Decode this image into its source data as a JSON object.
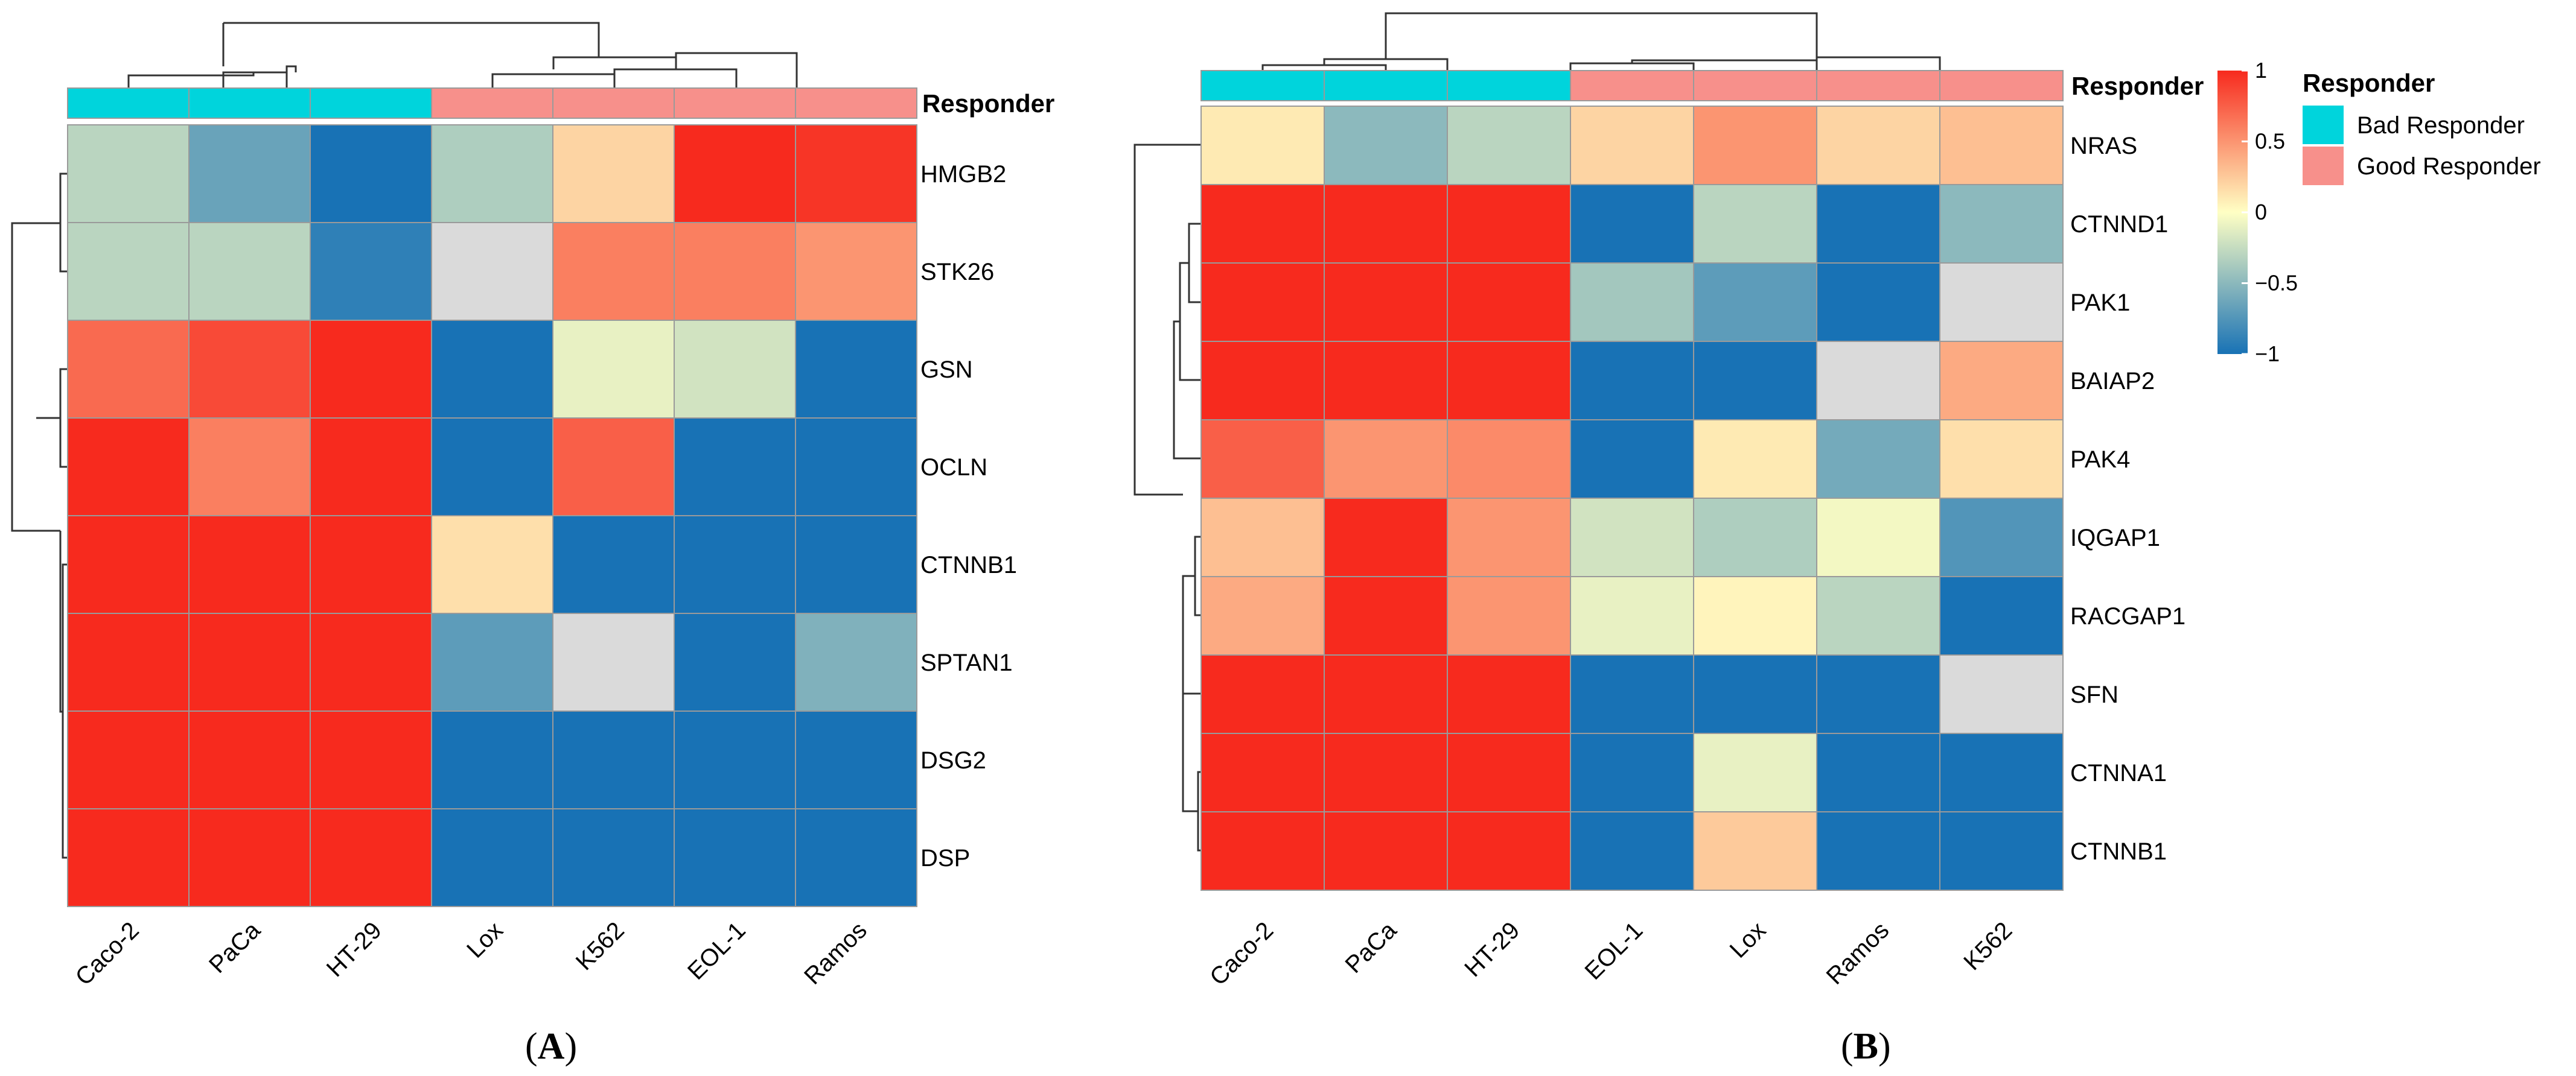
{
  "colors": {
    "bad_responder": "#00D4DC",
    "good_responder": "#F7908B",
    "scale": [
      "#1872B5",
      "#FFFFC4",
      "#F72A1E"
    ],
    "na": "#DADADA",
    "grid": "#9A9A9A"
  },
  "chart_data": [
    {
      "type": "heatmap",
      "panel_label": "A",
      "columns": [
        "Caco-2",
        "PaCa",
        "HT-29",
        "Lox",
        "K562",
        "EOL-1",
        "Ramos"
      ],
      "column_groups": [
        "Bad Responder",
        "Bad Responder",
        "Bad Responder",
        "Good Responder",
        "Good Responder",
        "Good Responder",
        "Good Responder"
      ],
      "annotation_label": "Responder",
      "rows": [
        "HMGB2",
        "STK26",
        "GSN",
        "OCLN",
        "CTNNB1",
        "SPTAN1",
        "DSG2",
        "DSP"
      ],
      "values": [
        [
          -0.3,
          -0.65,
          -1,
          -0.35,
          0.2,
          1,
          0.95
        ],
        [
          -0.3,
          -0.3,
          -0.9,
          null,
          0.6,
          0.6,
          0.5
        ],
        [
          0.7,
          0.85,
          1,
          -1,
          -0.1,
          -0.2,
          -1
        ],
        [
          1,
          0.6,
          1,
          -1,
          0.75,
          -1,
          -1
        ],
        [
          1,
          1,
          1,
          0.15,
          -1,
          -1,
          -1
        ],
        [
          1,
          1,
          1,
          -0.7,
          null,
          -1,
          -0.55
        ],
        [
          1,
          1,
          1,
          -1,
          -1,
          -1,
          -1
        ],
        [
          1,
          1,
          1,
          -1,
          -1,
          -1,
          -1
        ]
      ]
    },
    {
      "type": "heatmap",
      "panel_label": "B",
      "columns": [
        "Caco-2",
        "PaCa",
        "HT-29",
        "EOL-1",
        "Lox",
        "Ramos",
        "K562"
      ],
      "column_groups": [
        "Bad Responder",
        "Bad Responder",
        "Bad Responder",
        "Good Responder",
        "Good Responder",
        "Good Responder",
        "Good Responder"
      ],
      "annotation_label": "Responder",
      "rows": [
        "NRAS",
        "CTNND1",
        "PAK1",
        "BAIAP2",
        "PAK4",
        "IQGAP1",
        "RACGAP1",
        "SFN",
        "CTNNA1",
        "CTNNB1"
      ],
      "values": [
        [
          0.1,
          -0.5,
          -0.3,
          0.2,
          0.5,
          0.2,
          0.3
        ],
        [
          1,
          1,
          1,
          -1,
          -0.3,
          -1,
          -0.5
        ],
        [
          1,
          1,
          1,
          -0.4,
          -0.7,
          -1,
          null
        ],
        [
          1,
          1,
          1,
          -1,
          -1,
          null,
          0.4
        ],
        [
          0.75,
          0.5,
          0.55,
          -1,
          0.1,
          -0.6,
          0.15
        ],
        [
          0.3,
          1,
          0.5,
          -0.2,
          -0.35,
          -0.05,
          -0.75
        ],
        [
          0.4,
          1,
          0.5,
          -0.1,
          0.05,
          -0.3,
          -1
        ],
        [
          1,
          1,
          1,
          -1,
          -1,
          -1,
          null
        ],
        [
          1,
          1,
          1,
          -1,
          -0.1,
          -1,
          -1
        ],
        [
          1,
          1,
          1,
          -1,
          0.25,
          -1,
          -1
        ]
      ]
    }
  ],
  "legend": {
    "title": "Responder",
    "items": [
      {
        "label": "Bad Responder",
        "group": "Bad Responder"
      },
      {
        "label": "Good Responder",
        "group": "Good Responder"
      }
    ]
  },
  "color_scale": {
    "min": -1,
    "max": 1,
    "ticks": [
      {
        "value": 1,
        "label": "1"
      },
      {
        "value": 0.5,
        "label": "0.5"
      },
      {
        "value": 0,
        "label": "0"
      },
      {
        "value": -0.5,
        "label": "−0.5"
      },
      {
        "value": -1,
        "label": "−1"
      }
    ]
  }
}
